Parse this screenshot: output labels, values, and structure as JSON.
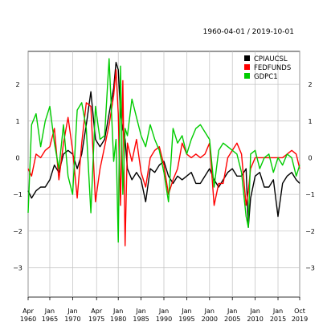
{
  "chart_data": {
    "type": "line",
    "title": "",
    "subtitle": "1960-04-01 / 2019-10-01",
    "xlabel": "",
    "ylabel": "",
    "x_range": [
      "1960-04-01",
      "2019-10-01"
    ],
    "ylim": [
      -3.8,
      2.9
    ],
    "y_ticks": [
      2,
      1,
      0,
      -1,
      -2,
      -3
    ],
    "y_tick_labels": [
      "2",
      "1",
      "0",
      "−1",
      "−2",
      "−3"
    ],
    "x_ticks": [
      {
        "year": 1960.25,
        "month": "Apr",
        "year_label": "1960"
      },
      {
        "year": 1965,
        "month": "Jan",
        "year_label": "1965"
      },
      {
        "year": 1970,
        "month": "Jan",
        "year_label": "1970"
      },
      {
        "year": 1975.25,
        "month": "Apr",
        "year_label": "1975"
      },
      {
        "year": 1980,
        "month": "Jan",
        "year_label": "1980"
      },
      {
        "year": 1985,
        "month": "Jan",
        "year_label": "1985"
      },
      {
        "year": 1990,
        "month": "Jan",
        "year_label": "1990"
      },
      {
        "year": 1995,
        "month": "Jan",
        "year_label": "1995"
      },
      {
        "year": 2000,
        "month": "Jan",
        "year_label": "2000"
      },
      {
        "year": 2005,
        "month": "Jan",
        "year_label": "2005"
      },
      {
        "year": 2010,
        "month": "Jan",
        "year_label": "2010"
      },
      {
        "year": 2015,
        "month": "Jan",
        "year_label": "2015"
      },
      {
        "year": 2019.75,
        "month": "Oct",
        "year_label": "2019"
      }
    ],
    "grid": true,
    "legend_position": "top-right",
    "series": [
      {
        "name": "CPIAUCSL",
        "color": "#000000",
        "x": [
          1960.25,
          1961,
          1962,
          1963,
          1964,
          1965,
          1966,
          1967,
          1968,
          1969,
          1970,
          1971,
          1972,
          1973,
          1974,
          1975,
          1976,
          1977,
          1978,
          1979,
          1979.5,
          1980,
          1980.5,
          1981,
          1981.5,
          1982,
          1983,
          1984,
          1985,
          1986,
          1987,
          1988,
          1989,
          1990,
          1991,
          1992,
          1993,
          1994,
          1995,
          1996,
          1997,
          1998,
          1999,
          2000,
          2001,
          2002,
          2003,
          2004,
          2005,
          2006,
          2007,
          2008,
          2008.5,
          2009,
          2010,
          2011,
          2012,
          2013,
          2014,
          2015,
          2016,
          2017,
          2018,
          2019,
          2019.75
        ],
        "y": [
          -0.9,
          -1.1,
          -0.9,
          -0.8,
          -0.8,
          -0.6,
          -0.2,
          -0.4,
          0.1,
          0.2,
          0.1,
          -0.3,
          0.1,
          0.9,
          1.8,
          0.5,
          0.3,
          0.5,
          1.2,
          1.9,
          2.6,
          2.4,
          1.2,
          0.8,
          0.5,
          -0.3,
          -0.6,
          -0.4,
          -0.6,
          -1.2,
          -0.3,
          -0.4,
          -0.2,
          -0.1,
          -0.5,
          -0.7,
          -0.5,
          -0.6,
          -0.5,
          -0.4,
          -0.7,
          -0.7,
          -0.5,
          -0.3,
          -0.6,
          -0.8,
          -0.6,
          -0.4,
          -0.3,
          -0.5,
          -0.5,
          -0.3,
          -1.9,
          -1.1,
          -0.5,
          -0.4,
          -0.8,
          -0.8,
          -0.6,
          -1.6,
          -0.7,
          -0.5,
          -0.4,
          -0.6,
          -0.7
        ]
      },
      {
        "name": "FEDFUNDS",
        "color": "#ff0000",
        "x": [
          1960.25,
          1961,
          1962,
          1963,
          1964,
          1965,
          1966,
          1967,
          1968,
          1969,
          1970,
          1971,
          1972,
          1973,
          1974,
          1975,
          1976,
          1977,
          1978,
          1979,
          1979.5,
          1980,
          1980.5,
          1981,
          1981.5,
          1982,
          1983,
          1984,
          1985,
          1986,
          1987,
          1988,
          1989,
          1990,
          1991,
          1992,
          1993,
          1994,
          1995,
          1996,
          1997,
          1998,
          1999,
          2000,
          2001,
          2002,
          2003,
          2004,
          2005,
          2006,
          2007,
          2008,
          2008.5,
          2009,
          2010,
          2011,
          2012,
          2013,
          2014,
          2015,
          2016,
          2017,
          2018,
          2019,
          2019.75
        ],
        "y": [
          -0.3,
          -0.5,
          0.1,
          0.0,
          0.2,
          0.3,
          0.8,
          -0.6,
          0.4,
          1.1,
          0.2,
          -1.1,
          0.4,
          1.5,
          1.4,
          -1.2,
          -0.3,
          0.3,
          0.9,
          1.7,
          2.4,
          1.2,
          -1.3,
          2.1,
          -2.4,
          0.4,
          -0.1,
          0.5,
          -0.4,
          -0.8,
          0.0,
          0.2,
          0.3,
          -0.2,
          -1.0,
          -0.6,
          -0.3,
          0.4,
          0.1,
          0.0,
          0.1,
          0.0,
          0.1,
          0.4,
          -1.3,
          -0.7,
          -0.7,
          0.0,
          0.2,
          0.4,
          0.1,
          -1.3,
          -0.9,
          -0.3,
          0.0,
          0.0,
          0.0,
          0.0,
          0.0,
          0.0,
          0.0,
          0.1,
          0.2,
          0.1,
          -0.3
        ]
      },
      {
        "name": "GDPC1",
        "color": "#00cc00",
        "x": [
          1960.25,
          1961,
          1962,
          1963,
          1964,
          1965,
          1966,
          1967,
          1968,
          1969,
          1970,
          1971,
          1972,
          1973,
          1974,
          1975,
          1976,
          1977,
          1978,
          1979,
          1979.5,
          1980,
          1980.5,
          1981,
          1981.5,
          1982,
          1983,
          1984,
          1985,
          1986,
          1987,
          1988,
          1989,
          1990,
          1991,
          1992,
          1993,
          1994,
          1995,
          1996,
          1997,
          1998,
          1999,
          2000,
          2001,
          2002,
          2003,
          2004,
          2005,
          2006,
          2007,
          2008,
          2008.5,
          2009,
          2010,
          2011,
          2012,
          2013,
          2014,
          2015,
          2016,
          2017,
          2018,
          2019,
          2019.75
        ],
        "y": [
          -1.5,
          0.9,
          1.2,
          0.3,
          1.0,
          1.4,
          0.4,
          -0.3,
          0.9,
          -0.5,
          -1.0,
          1.3,
          1.5,
          0.8,
          -1.5,
          1.4,
          0.5,
          0.6,
          2.7,
          -0.1,
          0.5,
          -2.3,
          2.5,
          -1.0,
          0.8,
          0.6,
          1.6,
          1.1,
          0.6,
          0.3,
          0.9,
          0.5,
          0.2,
          -0.4,
          -1.2,
          0.8,
          0.4,
          0.6,
          0.1,
          0.5,
          0.8,
          0.9,
          0.7,
          0.5,
          -0.8,
          0.2,
          0.4,
          0.3,
          0.2,
          0.1,
          -0.4,
          -1.6,
          -1.9,
          0.1,
          0.2,
          -0.3,
          0.0,
          0.1,
          -0.4,
          0.0,
          -0.2,
          0.1,
          0.0,
          -0.5,
          -0.2
        ]
      }
    ]
  }
}
